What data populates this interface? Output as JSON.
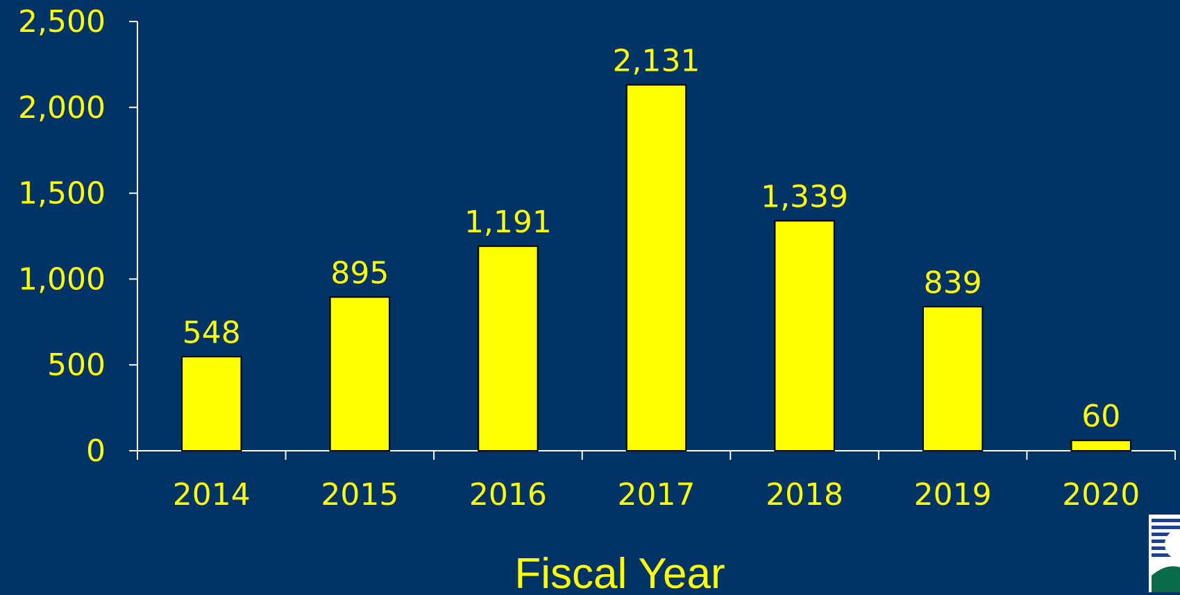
{
  "colors": {
    "background": "#003366",
    "bar_fill": "#FFFF00",
    "bar_stroke": "#000000",
    "text": "#FFFF00",
    "axis": "#FFFFFF"
  },
  "chart_data": {
    "type": "bar",
    "categories": [
      "2014",
      "2015",
      "2016",
      "2017",
      "2018",
      "2019",
      "2020"
    ],
    "values": [
      548,
      895,
      1191,
      2131,
      1339,
      839,
      60
    ],
    "value_labels": [
      "548",
      "895",
      "1,191",
      "2,131",
      "1,339",
      "839",
      "60"
    ],
    "ylim": [
      0,
      2500
    ],
    "yticks": [
      0,
      500,
      1000,
      1500,
      2000,
      2500
    ],
    "ytick_labels": [
      "0",
      "500",
      "1,000",
      "1,500",
      "2,000",
      "2,500"
    ],
    "xlabel": "Fiscal Year",
    "ylabel": "",
    "title": "",
    "grid": false,
    "legend": "none"
  },
  "logo": {
    "icon": "agency-logo-icon"
  }
}
